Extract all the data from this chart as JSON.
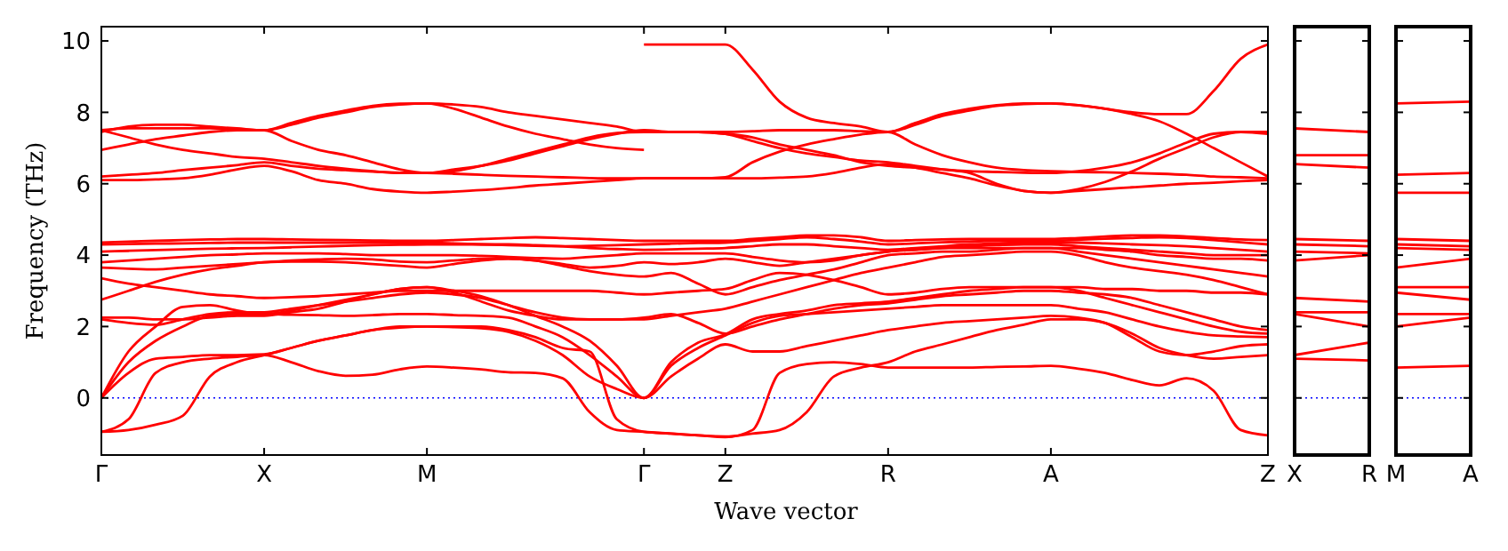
{
  "chart_data": [
    {
      "type": "line",
      "xlabel": "Wave vector",
      "ylabel": "Frequency (THz)",
      "ylim": [
        -1.6,
        10.4
      ],
      "yticks": [
        0,
        2,
        4,
        6,
        8,
        10
      ],
      "categories": [
        "Γ",
        null,
        null,
        null,
        null,
        null,
        "X",
        null,
        null,
        null,
        null,
        null,
        "M",
        null,
        null,
        null,
        null,
        null,
        null,
        null,
        "Γ",
        null,
        null,
        "Z",
        null,
        null,
        null,
        null,
        null,
        "R",
        null,
        null,
        null,
        null,
        null,
        "A",
        null,
        null,
        null,
        null,
        null,
        null,
        null,
        "Z"
      ],
      "ref_lines": [
        {
          "axis": "y",
          "value": 0,
          "color": "#0000ff",
          "line_style": "dotted"
        }
      ],
      "series": [
        {
          "color": "#ff0000",
          "values": [
            -0.95,
            -0.6,
            0.7,
            1.0,
            1.1,
            1.15,
            1.2,
            1.0,
            0.75,
            0.62,
            0.65,
            0.8,
            0.88,
            0.85,
            0.8,
            0.72,
            0.7,
            0.55,
            -0.4,
            -0.9,
            -0.95,
            -1.0,
            -1.05,
            -1.1,
            -0.9,
            0.7,
            0.95,
            1.0,
            0.95,
            0.85,
            0.85,
            0.85,
            0.85,
            0.87,
            0.88,
            0.9,
            0.82,
            0.7,
            0.5,
            0.35,
            0.55,
            0.2,
            -0.9,
            -1.05
          ]
        },
        {
          "color": "#ff0000",
          "values": [
            -0.95,
            -0.9,
            -0.75,
            -0.5,
            0.6,
            1.0,
            1.2,
            1.4,
            1.6,
            1.75,
            1.9,
            1.97,
            2.0,
            2.0,
            2.0,
            1.9,
            1.7,
            1.4,
            1.3,
            -0.6,
            -0.95,
            -1.0,
            -1.05,
            -1.08,
            -1.0,
            -0.9,
            -0.4,
            0.6,
            0.85,
            1.0,
            1.3,
            1.5,
            1.7,
            1.9,
            2.05,
            2.2,
            2.2,
            2.1,
            1.8,
            1.4,
            1.2,
            1.1,
            1.15,
            1.2
          ]
        },
        {
          "color": "#ff0000",
          "values": [
            0,
            0.7,
            1.1,
            1.15,
            1.2,
            1.2,
            1.22,
            1.4,
            1.6,
            1.75,
            1.9,
            2.0,
            2.0,
            1.98,
            1.95,
            1.85,
            1.6,
            1.2,
            0.6,
            0.25,
            0,
            0.6,
            1.1,
            1.5,
            1.3,
            1.3,
            1.45,
            1.6,
            1.75,
            1.9,
            2.0,
            2.1,
            2.15,
            2.2,
            2.25,
            2.3,
            2.25,
            2.1,
            1.7,
            1.3,
            1.2,
            1.3,
            1.45,
            1.5
          ]
        },
        {
          "color": "#ff0000",
          "values": [
            0,
            1.0,
            1.6,
            2.0,
            2.3,
            2.35,
            2.35,
            2.33,
            2.32,
            2.3,
            2.32,
            2.35,
            2.35,
            2.32,
            2.3,
            2.25,
            2.0,
            1.7,
            1.2,
            0.6,
            0,
            0.9,
            1.4,
            1.75,
            2.1,
            2.3,
            2.35,
            2.4,
            2.45,
            2.5,
            2.55,
            2.6,
            2.6,
            2.6,
            2.6,
            2.6,
            2.5,
            2.4,
            2.2,
            2.0,
            1.85,
            1.75,
            1.72,
            1.7
          ]
        },
        {
          "color": "#ff0000",
          "values": [
            0,
            1.3,
            2.0,
            2.55,
            2.6,
            2.45,
            2.35,
            2.45,
            2.6,
            2.75,
            2.9,
            3.05,
            3.1,
            3.0,
            2.85,
            2.6,
            2.3,
            2.0,
            1.6,
            0.9,
            0,
            1.0,
            1.55,
            1.78,
            2.2,
            2.35,
            2.45,
            2.6,
            2.65,
            2.7,
            2.8,
            2.9,
            3.0,
            3.05,
            3.1,
            3.1,
            3.0,
            2.8,
            2.6,
            2.4,
            2.2,
            2.0,
            1.85,
            1.8
          ]
        },
        {
          "color": "#ff0000",
          "values": [
            2.2,
            2.1,
            2.05,
            2.2,
            2.35,
            2.4,
            2.4,
            2.5,
            2.6,
            2.7,
            2.8,
            2.9,
            2.95,
            2.9,
            2.8,
            2.6,
            2.4,
            2.25,
            2.2,
            2.2,
            2.25,
            2.35,
            2.1,
            1.8,
            2.0,
            2.2,
            2.35,
            2.5,
            2.6,
            2.65,
            2.75,
            2.85,
            2.9,
            2.95,
            3.0,
            3.0,
            2.95,
            2.9,
            2.8,
            2.6,
            2.4,
            2.2,
            2.0,
            1.9
          ]
        },
        {
          "color": "#ff0000",
          "values": [
            2.25,
            2.25,
            2.2,
            2.2,
            2.25,
            2.3,
            2.3,
            2.4,
            2.5,
            2.7,
            2.9,
            3.05,
            3.1,
            2.95,
            2.7,
            2.45,
            2.3,
            2.2,
            2.2,
            2.2,
            2.2,
            2.3,
            2.4,
            2.5,
            2.7,
            2.9,
            3.1,
            3.3,
            3.5,
            3.65,
            3.8,
            3.95,
            4.0,
            4.05,
            4.1,
            4.1,
            4.0,
            3.8,
            3.65,
            3.55,
            3.45,
            3.3,
            3.1,
            2.9
          ]
        },
        {
          "color": "#ff0000",
          "values": [
            2.75,
            3.0,
            3.25,
            3.45,
            3.6,
            3.7,
            3.8,
            3.82,
            3.82,
            3.8,
            3.75,
            3.7,
            3.65,
            3.75,
            3.85,
            3.9,
            3.85,
            3.7,
            3.55,
            3.45,
            3.4,
            3.5,
            3.2,
            2.9,
            3.1,
            3.3,
            3.45,
            3.6,
            3.8,
            4.0,
            4.05,
            4.1,
            4.1,
            4.15,
            4.2,
            4.2,
            4.1,
            4.0,
            3.9,
            3.8,
            3.7,
            3.6,
            3.5,
            3.4
          ]
        },
        {
          "color": "#ff0000",
          "values": [
            3.35,
            3.2,
            3.1,
            3.0,
            2.9,
            2.85,
            2.8,
            2.82,
            2.85,
            2.9,
            2.95,
            3.0,
            3.0,
            3.0,
            3.0,
            3.0,
            3.0,
            3.0,
            3.0,
            2.95,
            2.9,
            2.95,
            3.0,
            3.05,
            3.3,
            3.5,
            3.45,
            3.3,
            3.1,
            2.9,
            2.95,
            3.05,
            3.1,
            3.1,
            3.1,
            3.1,
            3.1,
            3.05,
            3.05,
            3.0,
            3.0,
            2.95,
            2.95,
            2.9
          ]
        },
        {
          "color": "#ff0000",
          "values": [
            3.65,
            3.62,
            3.6,
            3.65,
            3.7,
            3.75,
            3.8,
            3.85,
            3.88,
            3.9,
            3.88,
            3.82,
            3.8,
            3.85,
            3.9,
            3.9,
            3.85,
            3.75,
            3.65,
            3.7,
            3.8,
            3.75,
            3.8,
            3.9,
            3.8,
            3.7,
            3.8,
            3.9,
            4.0,
            4.1,
            4.15,
            4.2,
            4.2,
            4.2,
            4.2,
            4.2,
            4.2,
            4.15,
            4.1,
            4.0,
            3.95,
            3.9,
            3.9,
            3.85
          ]
        },
        {
          "color": "#ff0000",
          "values": [
            3.8,
            3.85,
            3.9,
            3.95,
            4.0,
            4.02,
            4.05,
            4.05,
            4.05,
            4.03,
            4.0,
            4.0,
            4.0,
            4.0,
            3.98,
            3.95,
            3.92,
            3.9,
            3.95,
            4.0,
            4.05,
            4.05,
            4.05,
            4.05,
            3.95,
            3.85,
            3.8,
            3.85,
            4.0,
            4.1,
            4.15,
            4.2,
            4.25,
            4.28,
            4.3,
            4.3,
            4.25,
            4.2,
            4.15,
            4.1,
            4.05,
            4.0,
            4.0,
            4.0
          ]
        },
        {
          "color": "#ff0000",
          "values": [
            4.1,
            4.12,
            4.14,
            4.16,
            4.18,
            4.19,
            4.2,
            4.22,
            4.24,
            4.26,
            4.28,
            4.29,
            4.3,
            4.3,
            4.3,
            4.3,
            4.28,
            4.25,
            4.2,
            4.17,
            4.15,
            4.16,
            4.18,
            4.2,
            4.25,
            4.3,
            4.3,
            4.25,
            4.2,
            4.15,
            4.2,
            4.25,
            4.3,
            4.33,
            4.35,
            4.35,
            4.35,
            4.33,
            4.3,
            4.28,
            4.25,
            4.2,
            4.15,
            4.1
          ]
        },
        {
          "color": "#ff0000",
          "values": [
            4.3,
            4.31,
            4.32,
            4.33,
            4.34,
            4.35,
            4.35,
            4.35,
            4.35,
            4.35,
            4.35,
            4.35,
            4.35,
            4.33,
            4.3,
            4.28,
            4.26,
            4.25,
            4.26,
            4.28,
            4.3,
            4.32,
            4.34,
            4.35,
            4.4,
            4.45,
            4.5,
            4.45,
            4.38,
            4.3,
            4.33,
            4.36,
            4.38,
            4.4,
            4.4,
            4.4,
            4.43,
            4.46,
            4.48,
            4.5,
            4.48,
            4.42,
            4.36,
            4.3
          ]
        },
        {
          "color": "#ff0000",
          "values": [
            4.35,
            4.38,
            4.4,
            4.42,
            4.44,
            4.45,
            4.45,
            4.44,
            4.43,
            4.42,
            4.41,
            4.4,
            4.4,
            4.42,
            4.45,
            4.48,
            4.5,
            4.48,
            4.45,
            4.42,
            4.4,
            4.4,
            4.4,
            4.4,
            4.45,
            4.5,
            4.55,
            4.55,
            4.5,
            4.4,
            4.42,
            4.44,
            4.45,
            4.45,
            4.45,
            4.45,
            4.48,
            4.52,
            4.55,
            4.55,
            4.52,
            4.48,
            4.44,
            4.42
          ]
        },
        {
          "color": "#ff0000",
          "values": [
            6.1,
            6.1,
            6.12,
            6.15,
            6.25,
            6.4,
            6.5,
            6.35,
            6.1,
            6.0,
            5.85,
            5.78,
            5.75,
            5.78,
            5.82,
            5.88,
            5.95,
            6.0,
            6.05,
            6.1,
            6.15,
            6.15,
            6.15,
            6.15,
            6.15,
            6.17,
            6.2,
            6.3,
            6.45,
            6.55,
            6.45,
            6.3,
            6.15,
            5.95,
            5.8,
            5.75,
            5.8,
            5.85,
            5.9,
            5.95,
            6.0,
            6.03,
            6.07,
            6.1
          ]
        },
        {
          "color": "#ff0000",
          "values": [
            6.2,
            6.25,
            6.3,
            6.38,
            6.45,
            6.52,
            6.6,
            6.5,
            6.42,
            6.38,
            6.34,
            6.31,
            6.3,
            6.28,
            6.25,
            6.22,
            6.2,
            6.18,
            6.16,
            6.15,
            6.15,
            6.15,
            6.15,
            6.18,
            6.6,
            6.9,
            7.1,
            7.25,
            7.38,
            7.45,
            7.1,
            6.8,
            6.6,
            6.45,
            6.38,
            6.35,
            6.33,
            6.32,
            6.3,
            6.28,
            6.25,
            6.2,
            6.18,
            6.15
          ]
        },
        {
          "color": "#ff0000",
          "values": [
            6.95,
            7.1,
            7.25,
            7.35,
            7.45,
            7.5,
            7.5,
            7.2,
            6.95,
            6.8,
            6.6,
            6.4,
            6.3,
            6.35,
            6.5,
            6.7,
            6.9,
            7.1,
            7.3,
            7.42,
            7.45,
            7.45,
            7.45,
            7.4,
            7.2,
            7.0,
            6.85,
            6.75,
            6.65,
            6.6,
            6.5,
            6.4,
            6.3,
            6.0,
            5.8,
            5.75,
            5.85,
            6.05,
            6.35,
            6.7,
            7.0,
            7.3,
            7.45,
            7.45
          ]
        },
        {
          "color": "#ff0000",
          "values": [
            7.5,
            7.3,
            7.1,
            6.95,
            6.85,
            6.75,
            6.7,
            6.6,
            6.5,
            6.42,
            6.35,
            6.3,
            6.3,
            6.4,
            6.5,
            6.65,
            6.85,
            7.05,
            7.25,
            7.4,
            7.5,
            7.45,
            7.45,
            7.4,
            7.3,
            7.1,
            6.95,
            6.8,
            6.6,
            6.5,
            6.45,
            6.4,
            6.35,
            6.33,
            6.31,
            6.3,
            6.35,
            6.45,
            6.6,
            6.85,
            7.15,
            7.4,
            7.45,
            7.4
          ]
        },
        {
          "color": "#ff0000",
          "values": [
            7.5,
            7.55,
            7.55,
            7.55,
            7.55,
            7.52,
            7.5,
            7.65,
            7.85,
            8.0,
            8.15,
            8.22,
            8.25,
            8.22,
            8.15,
            8.0,
            7.9,
            7.8,
            7.7,
            7.6,
            7.45,
            7.45,
            7.45,
            7.45,
            7.47,
            7.5,
            7.5,
            7.5,
            7.47,
            7.45,
            7.65,
            7.9,
            8.05,
            8.18,
            8.23,
            8.25,
            8.2,
            8.1,
            7.95,
            7.75,
            7.4,
            7.0,
            6.6,
            6.2
          ]
        },
        {
          "color": "#ff0000",
          "values": [
            7.45,
            7.6,
            7.65,
            7.65,
            7.6,
            7.55,
            7.5,
            7.7,
            7.9,
            8.05,
            8.18,
            8.24,
            8.25,
            8.1,
            7.85,
            7.6,
            7.4,
            7.25,
            7.1,
            7.0,
            6.95,
            null,
            null,
            null,
            null,
            null,
            null,
            null,
            null,
            null,
            null,
            null,
            null,
            null,
            null,
            null,
            null,
            null,
            null,
            null,
            null,
            null,
            null,
            null
          ]
        },
        {
          "color": "#ff0000",
          "values": [
            null,
            null,
            null,
            null,
            null,
            null,
            null,
            null,
            null,
            null,
            null,
            null,
            null,
            null,
            null,
            null,
            null,
            null,
            null,
            null,
            9.9,
            9.9,
            9.9,
            9.9,
            9.2,
            8.3,
            7.85,
            7.7,
            7.6,
            7.45,
            7.7,
            7.95,
            8.1,
            8.2,
            8.25,
            8.25,
            8.2,
            8.1,
            8.0,
            7.95,
            7.95,
            8.6,
            9.5,
            9.9
          ]
        }
      ]
    },
    {
      "type": "line",
      "tick_labels": "x",
      "ylim": [
        -1.6,
        10.4
      ],
      "yticks": [
        {
          "value": 0,
          "label": null
        },
        {
          "value": 2,
          "label": null
        },
        {
          "value": 4,
          "label": null
        },
        {
          "value": 6,
          "label": null
        },
        {
          "value": 8,
          "label": null
        },
        {
          "value": 10,
          "label": null
        }
      ],
      "categories": [
        "X",
        "R"
      ],
      "ref_lines": [
        {
          "axis": "y",
          "value": 0,
          "color": "#0000ff",
          "line_style": "dotted"
        }
      ],
      "series": [
        {
          "color": "#ff0000",
          "values": [
            7.55,
            7.45
          ]
        },
        {
          "color": "#ff0000",
          "values": [
            6.8,
            6.8
          ]
        },
        {
          "color": "#ff0000",
          "values": [
            6.55,
            6.45
          ]
        },
        {
          "color": "#ff0000",
          "values": [
            4.45,
            4.4
          ]
        },
        {
          "color": "#ff0000",
          "values": [
            4.3,
            4.25
          ]
        },
        {
          "color": "#ff0000",
          "values": [
            4.1,
            4.05
          ]
        },
        {
          "color": "#ff0000",
          "values": [
            3.85,
            4.0
          ]
        },
        {
          "color": "#ff0000",
          "values": [
            2.8,
            2.7
          ]
        },
        {
          "color": "#ff0000",
          "values": [
            2.4,
            2.4
          ]
        },
        {
          "color": "#ff0000",
          "values": [
            2.35,
            2.0
          ]
        },
        {
          "color": "#ff0000",
          "values": [
            1.2,
            1.55
          ]
        },
        {
          "color": "#ff0000",
          "values": [
            1.1,
            1.05
          ]
        }
      ]
    },
    {
      "type": "line",
      "tick_labels": "x",
      "ylim": [
        -1.6,
        10.4
      ],
      "yticks": [
        {
          "value": 0,
          "label": null
        },
        {
          "value": 2,
          "label": null
        },
        {
          "value": 4,
          "label": null
        },
        {
          "value": 6,
          "label": null
        },
        {
          "value": 8,
          "label": null
        },
        {
          "value": 10,
          "label": null
        }
      ],
      "categories": [
        "M",
        "A"
      ],
      "ref_lines": [
        {
          "axis": "y",
          "value": 0,
          "color": "#0000ff",
          "line_style": "dotted"
        }
      ],
      "series": [
        {
          "color": "#ff0000",
          "values": [
            8.25,
            8.3
          ]
        },
        {
          "color": "#ff0000",
          "values": [
            6.25,
            6.3
          ]
        },
        {
          "color": "#ff0000",
          "values": [
            5.75,
            5.75
          ]
        },
        {
          "color": "#ff0000",
          "values": [
            4.45,
            4.4
          ]
        },
        {
          "color": "#ff0000",
          "values": [
            4.3,
            4.25
          ]
        },
        {
          "color": "#ff0000",
          "values": [
            4.2,
            4.15
          ]
        },
        {
          "color": "#ff0000",
          "values": [
            3.65,
            3.9
          ]
        },
        {
          "color": "#ff0000",
          "values": [
            3.1,
            3.1
          ]
        },
        {
          "color": "#ff0000",
          "values": [
            2.95,
            2.75
          ]
        },
        {
          "color": "#ff0000",
          "values": [
            2.35,
            2.35
          ]
        },
        {
          "color": "#ff0000",
          "values": [
            2.0,
            2.25
          ]
        },
        {
          "color": "#ff0000",
          "values": [
            0.85,
            0.9
          ]
        }
      ]
    }
  ]
}
